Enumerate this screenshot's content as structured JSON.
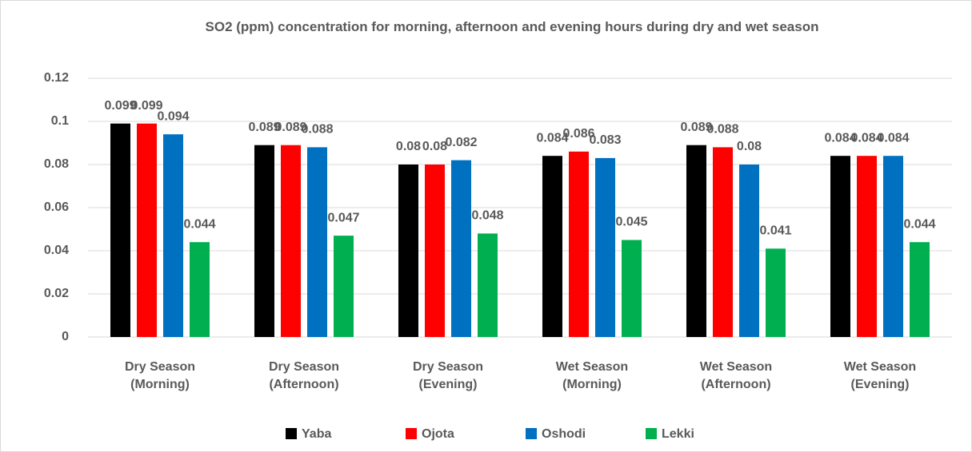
{
  "chart_data": {
    "type": "bar",
    "title": "SO2 (ppm) concentration for morning, afternoon and evening hours during dry and wet season",
    "categories": [
      [
        "Dry Season",
        "(Morning)"
      ],
      [
        "Dry Season",
        "(Afternoon)"
      ],
      [
        "Dry Season",
        "(Evening)"
      ],
      [
        "Wet Season",
        "(Morning)"
      ],
      [
        "Wet Season",
        "(Afternoon)"
      ],
      [
        "Wet Season",
        "(Evening)"
      ]
    ],
    "series": [
      {
        "name": "Yaba",
        "color": "#000000",
        "values": [
          0.099,
          0.089,
          0.08,
          0.084,
          0.089,
          0.084
        ]
      },
      {
        "name": "Ojota",
        "color": "#ff0000",
        "values": [
          0.099,
          0.089,
          0.08,
          0.086,
          0.088,
          0.084
        ]
      },
      {
        "name": "Oshodi",
        "color": "#0070c0",
        "values": [
          0.094,
          0.088,
          0.082,
          0.083,
          0.08,
          0.084
        ]
      },
      {
        "name": "Lekki",
        "color": "#00b050",
        "values": [
          0.044,
          0.047,
          0.048,
          0.045,
          0.041,
          0.044
        ]
      }
    ],
    "ylim": [
      0,
      0.12
    ],
    "yticks": [
      0,
      0.02,
      0.04,
      0.06,
      0.08,
      0.1,
      0.12
    ],
    "grid": true,
    "legend": "bottom"
  }
}
